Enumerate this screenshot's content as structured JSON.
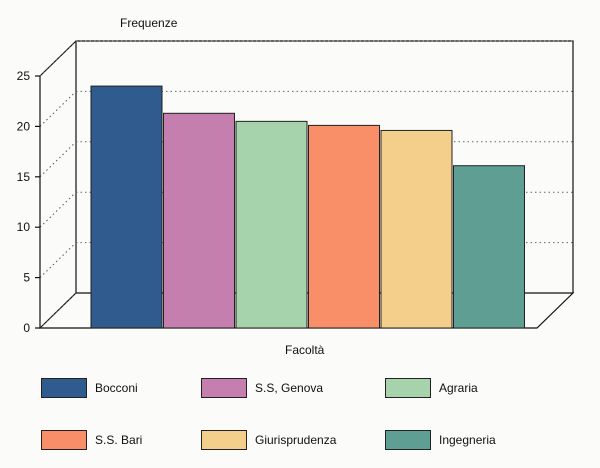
{
  "chart_data": {
    "type": "bar",
    "title": "",
    "ylabel": "Frequenze",
    "xlabel": "Facoltà",
    "ylim": [
      0,
      25
    ],
    "yticks": [
      0,
      5,
      10,
      15,
      20,
      25
    ],
    "grid": true,
    "categories": [
      "Bocconi",
      "S.S, Genova",
      "Agraria",
      "S.S. Bari",
      "Giurisprudenza",
      "Ingegneria"
    ],
    "values": [
      24,
      21.3,
      20.5,
      20.1,
      19.6,
      16.1
    ],
    "colors": [
      "#2f5b8e",
      "#c57fae",
      "#a7d3ac",
      "#f98f69",
      "#f4cf8b",
      "#5f9e92"
    ],
    "legend_position": "bottom"
  }
}
